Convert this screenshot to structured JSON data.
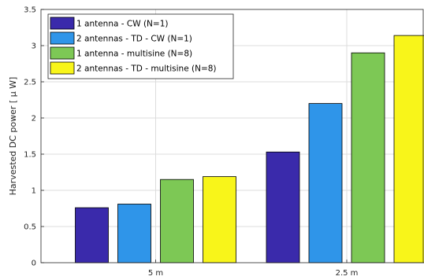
{
  "chart_data": {
    "type": "bar",
    "categories": [
      "5 m",
      "2.5 m"
    ],
    "ylabel": "Harvested DC power [ μ W]",
    "ylim": [
      0,
      3.5
    ],
    "yticks": [
      0,
      0.5,
      1,
      1.5,
      2,
      2.5,
      3,
      3.5
    ],
    "ytick_labels": [
      "0",
      "0.5",
      "1",
      "1.5",
      "2",
      "2.5",
      "3",
      "3.5"
    ],
    "grid": true,
    "legend_position": "top-left",
    "series": [
      {
        "name": "1 antenna - CW (N=1)",
        "color": "#3a2aab",
        "values": [
          0.76,
          1.53
        ]
      },
      {
        "name": "2 antennas - TD - CW (N=1)",
        "color": "#2f95e9",
        "values": [
          0.81,
          2.2
        ]
      },
      {
        "name": "1 antenna - multisine (N=8)",
        "color": "#7dc855",
        "values": [
          1.15,
          2.9
        ]
      },
      {
        "name": "2 antennas - TD - multisine (N=8)",
        "color": "#f8f51a",
        "values": [
          1.19,
          3.14
        ]
      }
    ]
  }
}
